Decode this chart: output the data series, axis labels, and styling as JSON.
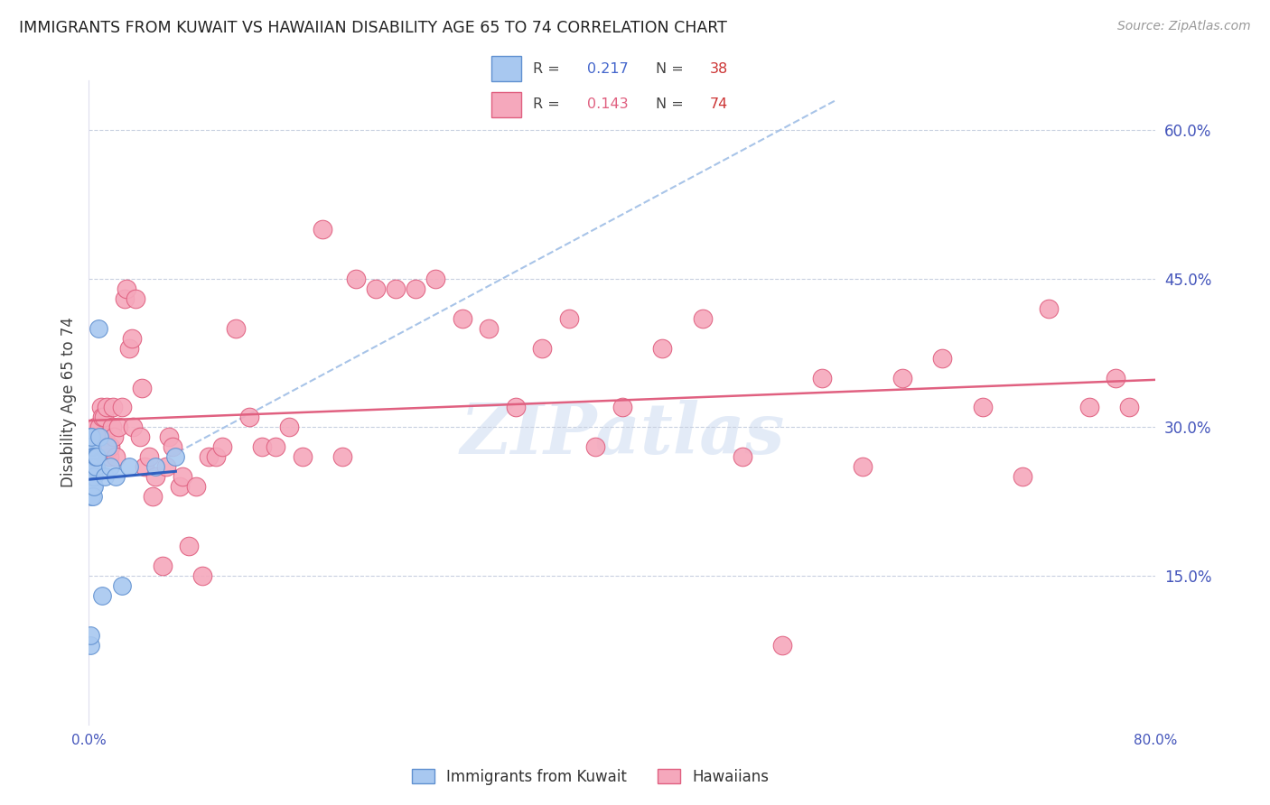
{
  "title": "IMMIGRANTS FROM KUWAIT VS HAWAIIAN DISABILITY AGE 65 TO 74 CORRELATION CHART",
  "source": "Source: ZipAtlas.com",
  "ylabel": "Disability Age 65 to 74",
  "xlim": [
    0.0,
    0.8
  ],
  "ylim": [
    0.0,
    0.65
  ],
  "x_ticks": [
    0.0,
    0.1,
    0.2,
    0.3,
    0.4,
    0.5,
    0.6,
    0.7,
    0.8
  ],
  "x_tick_labels": [
    "0.0%",
    "",
    "",
    "",
    "",
    "",
    "",
    "",
    "80.0%"
  ],
  "y_ticks_right": [
    0.15,
    0.3,
    0.45,
    0.6
  ],
  "y_tick_labels_right": [
    "15.0%",
    "30.0%",
    "45.0%",
    "60.0%"
  ],
  "legend_label1": "Immigrants from Kuwait",
  "legend_label2": "Hawaiians",
  "blue_color": "#A8C8F0",
  "pink_color": "#F5A8BC",
  "blue_edge_color": "#6090D0",
  "pink_edge_color": "#E06080",
  "blue_line_color": "#3060C0",
  "pink_line_color": "#E06080",
  "dashed_line_color": "#A8C4E8",
  "watermark": "ZIPatlas",
  "blue_r": "0.217",
  "blue_n": "38",
  "pink_r": "0.143",
  "pink_n": "74",
  "blue_scatter_x": [
    0.001,
    0.001,
    0.001,
    0.001,
    0.001,
    0.001,
    0.001,
    0.001,
    0.002,
    0.002,
    0.002,
    0.002,
    0.002,
    0.002,
    0.002,
    0.003,
    0.003,
    0.003,
    0.003,
    0.003,
    0.004,
    0.004,
    0.004,
    0.004,
    0.005,
    0.005,
    0.006,
    0.007,
    0.008,
    0.01,
    0.012,
    0.014,
    0.016,
    0.02,
    0.025,
    0.03,
    0.05,
    0.065
  ],
  "blue_scatter_y": [
    0.24,
    0.25,
    0.26,
    0.27,
    0.28,
    0.29,
    0.08,
    0.09,
    0.25,
    0.26,
    0.27,
    0.28,
    0.29,
    0.24,
    0.23,
    0.25,
    0.26,
    0.27,
    0.24,
    0.23,
    0.26,
    0.25,
    0.27,
    0.24,
    0.26,
    0.27,
    0.27,
    0.4,
    0.29,
    0.13,
    0.25,
    0.28,
    0.26,
    0.25,
    0.14,
    0.26,
    0.26,
    0.27
  ],
  "pink_scatter_x": [
    0.005,
    0.007,
    0.008,
    0.009,
    0.01,
    0.011,
    0.012,
    0.013,
    0.015,
    0.016,
    0.017,
    0.018,
    0.019,
    0.02,
    0.022,
    0.025,
    0.027,
    0.028,
    0.03,
    0.032,
    0.033,
    0.035,
    0.038,
    0.04,
    0.042,
    0.045,
    0.048,
    0.05,
    0.055,
    0.058,
    0.06,
    0.063,
    0.068,
    0.07,
    0.075,
    0.08,
    0.085,
    0.09,
    0.095,
    0.1,
    0.11,
    0.12,
    0.13,
    0.14,
    0.15,
    0.16,
    0.175,
    0.19,
    0.2,
    0.215,
    0.23,
    0.245,
    0.26,
    0.28,
    0.3,
    0.32,
    0.34,
    0.36,
    0.38,
    0.4,
    0.43,
    0.46,
    0.49,
    0.52,
    0.55,
    0.58,
    0.61,
    0.64,
    0.67,
    0.7,
    0.72,
    0.75,
    0.77,
    0.78
  ],
  "pink_scatter_y": [
    0.3,
    0.29,
    0.3,
    0.32,
    0.31,
    0.31,
    0.29,
    0.32,
    0.27,
    0.28,
    0.3,
    0.32,
    0.29,
    0.27,
    0.3,
    0.32,
    0.43,
    0.44,
    0.38,
    0.39,
    0.3,
    0.43,
    0.29,
    0.34,
    0.26,
    0.27,
    0.23,
    0.25,
    0.16,
    0.26,
    0.29,
    0.28,
    0.24,
    0.25,
    0.18,
    0.24,
    0.15,
    0.27,
    0.27,
    0.28,
    0.4,
    0.31,
    0.28,
    0.28,
    0.3,
    0.27,
    0.5,
    0.27,
    0.45,
    0.44,
    0.44,
    0.44,
    0.45,
    0.41,
    0.4,
    0.32,
    0.38,
    0.41,
    0.28,
    0.32,
    0.38,
    0.41,
    0.27,
    0.08,
    0.35,
    0.26,
    0.35,
    0.37,
    0.32,
    0.25,
    0.42,
    0.32,
    0.35,
    0.32
  ]
}
